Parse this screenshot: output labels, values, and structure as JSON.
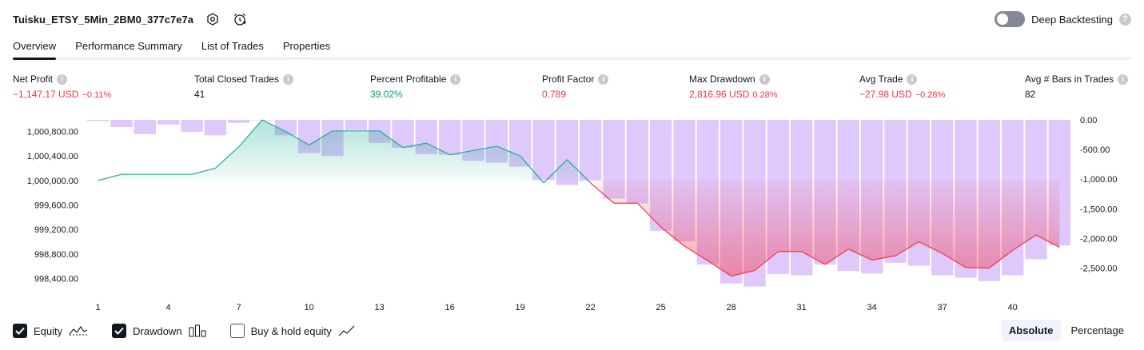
{
  "header": {
    "title": "Tuisku_ETSY_5Min_2BM0_377c7e7a",
    "deep_backtesting_label": "Deep Backtesting",
    "deep_backtesting_on": false
  },
  "tabs": [
    {
      "label": "Overview",
      "active": true
    },
    {
      "label": "Performance Summary",
      "active": false
    },
    {
      "label": "List of Trades",
      "active": false
    },
    {
      "label": "Properties",
      "active": false
    }
  ],
  "metrics": {
    "net_profit": {
      "label": "Net Profit",
      "value": "−1,147.17 USD",
      "pct": "−0.11%"
    },
    "total_closed_trades": {
      "label": "Total Closed Trades",
      "value": "41"
    },
    "percent_profitable": {
      "label": "Percent Profitable",
      "value": "39.02%"
    },
    "profit_factor": {
      "label": "Profit Factor",
      "value": "0.789"
    },
    "max_drawdown": {
      "label": "Max Drawdown",
      "value": "2,816.96 USD",
      "pct": "0.28%"
    },
    "avg_trade": {
      "label": "Avg Trade",
      "value": "−27.98 USD",
      "pct": "−0.28%"
    },
    "avg_bars": {
      "label": "Avg # Bars in Trades",
      "value": "82"
    }
  },
  "chart_data": {
    "type": "line",
    "x_ticks": [
      "1",
      "4",
      "7",
      "10",
      "13",
      "16",
      "19",
      "22",
      "25",
      "28",
      "31",
      "34",
      "37",
      "40"
    ],
    "left_axis": {
      "label": "",
      "ticks": [
        "1,000,800.00",
        "1,000,400.00",
        "1,000,000.00",
        "999,600.00",
        "999,200.00",
        "998,800.00",
        "998,400.00"
      ],
      "range": [
        998250,
        1000990
      ]
    },
    "right_axis": {
      "label": "",
      "ticks": [
        "0.00",
        "-500.00",
        "-1,000.00",
        "-1,500.00",
        "-2,000.00",
        "-2,500.00"
      ],
      "range": [
        -2830,
        0
      ]
    },
    "baseline": 1000000,
    "series": [
      {
        "name": "Equity",
        "axis": "left",
        "x": [
          1,
          2,
          3,
          4,
          5,
          6,
          7,
          8,
          9,
          10,
          11,
          12,
          13,
          14,
          15,
          16,
          17,
          18,
          19,
          20,
          21,
          22,
          23,
          24,
          25,
          26,
          27,
          28,
          29,
          30,
          31,
          32,
          33,
          34,
          35,
          36,
          37,
          38,
          39,
          40,
          41,
          42
        ],
        "values": [
          1000000,
          1000100,
          1000100,
          1000100,
          1000100,
          1000200,
          1000550,
          1000990,
          1000800,
          1000580,
          1000810,
          1000810,
          1000810,
          1000540,
          1000610,
          1000420,
          1000490,
          1000560,
          1000400,
          999960,
          1000340,
          999960,
          999630,
          999630,
          999240,
          998930,
          998690,
          998440,
          998530,
          998840,
          998840,
          998630,
          998880,
          998700,
          998770,
          999000,
          998810,
          998580,
          998570,
          998860,
          999110,
          998910
        ]
      },
      {
        "name": "Drawdown",
        "axis": "right",
        "x": [
          1,
          2,
          3,
          4,
          5,
          6,
          7,
          8,
          9,
          10,
          11,
          12,
          13,
          14,
          15,
          16,
          17,
          18,
          19,
          20,
          21,
          22,
          23,
          24,
          25,
          26,
          27,
          28,
          29,
          30,
          31,
          32,
          33,
          34,
          35,
          36,
          37,
          38,
          39,
          40,
          41,
          42
        ],
        "values": [
          -20,
          -120,
          -240,
          -80,
          -200,
          -260,
          -50,
          0,
          -260,
          -560,
          -610,
          -170,
          -390,
          -470,
          -580,
          -590,
          -690,
          -720,
          -790,
          -1010,
          -1100,
          -1020,
          -1330,
          -1410,
          -1870,
          -2050,
          -2440,
          -2760,
          -2810,
          -2600,
          -2620,
          -2440,
          -2550,
          -2590,
          -2410,
          -2460,
          -2620,
          -2660,
          -2720,
          -2620,
          -2350,
          -2120
        ]
      }
    ]
  },
  "legend": {
    "equity": {
      "label": "Equity",
      "checked": true
    },
    "drawdown": {
      "label": "Drawdown",
      "checked": true
    },
    "buy_hold": {
      "label": "Buy & hold equity",
      "checked": false
    }
  },
  "mode": {
    "absolute": "Absolute",
    "percentage": "Percentage",
    "active": "absolute"
  },
  "colors": {
    "equity_line": "#22ab94",
    "equity_loss_line": "#f23645",
    "drawdown_bar": "#c9a3f9",
    "drawdown_bar_opacity": 0.6
  }
}
